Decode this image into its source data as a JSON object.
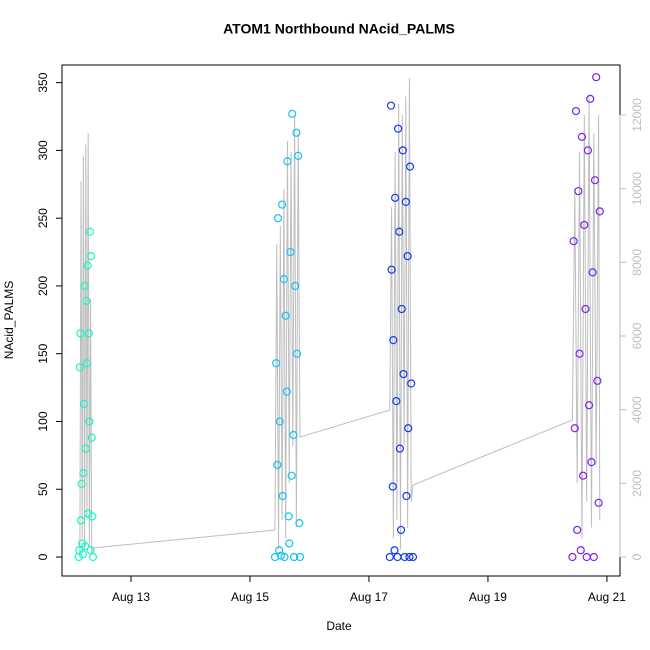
{
  "chart_data": {
    "type": "scatter",
    "title": "ATOM1 Northbound NAcid_PALMS",
    "x_label": "Date",
    "y_label": "NAcid_PALMS",
    "xlim": [
      11.84,
      21.22
    ],
    "ylim": [
      -14,
      363
    ],
    "y2lim": [
      -516,
      13358
    ],
    "xticks": [
      {
        "value": 13,
        "label": "Aug 13"
      },
      {
        "value": 15,
        "label": "Aug 15"
      },
      {
        "value": 17,
        "label": "Aug 17"
      },
      {
        "value": 19,
        "label": "Aug 19"
      },
      {
        "value": 21,
        "label": "Aug 21"
      }
    ],
    "yticks": [
      0,
      50,
      100,
      150,
      200,
      250,
      300,
      350
    ],
    "y2ticks": [
      0,
      2000,
      4000,
      6000,
      8000,
      10000,
      12000
    ],
    "series": [
      {
        "type": "line",
        "axis": "y2",
        "color": "#bebebe",
        "x": [
          12.14,
          12.16,
          12.18,
          12.2,
          12.22,
          12.24,
          12.26,
          12.28,
          12.3,
          12.32,
          12.34,
          12.36,
          15.42,
          15.45,
          15.48,
          15.51,
          15.54,
          15.57,
          15.6,
          15.63,
          15.66,
          15.69,
          15.72,
          15.75,
          15.78,
          15.81,
          15.84,
          17.35,
          17.38,
          17.41,
          17.44,
          17.47,
          17.5,
          17.53,
          17.56,
          17.59,
          17.62,
          17.65,
          17.68,
          17.71,
          17.74,
          20.42,
          20.46,
          20.5,
          20.54,
          20.58,
          20.62,
          20.66,
          20.7,
          20.74,
          20.78,
          20.82,
          20.86,
          20.88
        ],
        "values": [
          0,
          10200,
          500,
          10900,
          200,
          11200,
          1000,
          11500,
          300,
          7000,
          100,
          244,
          733,
          8500,
          200,
          9000,
          1000,
          10000,
          500,
          11300,
          2000,
          11000,
          3000,
          12000,
          800,
          11500,
          3258,
          3991,
          9500,
          500,
          11000,
          1000,
          12300,
          200,
          12000,
          3000,
          12500,
          800,
          13000,
          1500,
          1955,
          3720,
          10000,
          2000,
          11000,
          500,
          12000,
          1500,
          12500,
          800,
          11500,
          2500,
          12000,
          1000
        ]
      },
      {
        "type": "scatter",
        "color": "#1cf5c8",
        "x": [
          12.12,
          12.13,
          12.14,
          12.15,
          12.16,
          12.17,
          12.18,
          12.19,
          12.2,
          12.21,
          12.22,
          12.23,
          12.24,
          12.25,
          12.26,
          12.27,
          12.28,
          12.29,
          12.3,
          12.31,
          12.32,
          12.33,
          12.34,
          12.35,
          12.36
        ],
        "values": [
          0,
          5,
          140,
          165,
          27,
          54,
          10,
          2,
          62,
          113,
          200,
          8,
          80,
          189,
          143,
          215,
          32,
          165,
          100,
          240,
          5,
          222,
          88,
          30,
          0
        ]
      },
      {
        "type": "scatter",
        "color": "#12c4f2",
        "x": [
          15.42,
          15.44,
          15.46,
          15.47,
          15.49,
          15.5,
          15.52,
          15.54,
          15.55,
          15.57,
          15.58,
          15.6,
          15.62,
          15.63,
          15.65,
          15.66,
          15.68,
          15.7,
          15.71,
          15.73,
          15.74,
          15.76,
          15.78,
          15.79,
          15.81,
          15.83,
          15.84
        ],
        "values": [
          0,
          143,
          68,
          250,
          5,
          100,
          1,
          260,
          45,
          205,
          0,
          178,
          122,
          292,
          30,
          10,
          225,
          60,
          327,
          90,
          0,
          200,
          313,
          150,
          296,
          25,
          0
        ]
      },
      {
        "type": "scatter",
        "color": "#1638ea",
        "x": [
          17.35,
          17.37,
          17.38,
          17.4,
          17.41,
          17.43,
          17.44,
          17.46,
          17.48,
          17.49,
          17.51,
          17.52,
          17.54,
          17.55,
          17.57,
          17.58,
          17.6,
          17.62,
          17.63,
          17.65,
          17.66,
          17.68,
          17.69,
          17.71,
          17.74
        ],
        "values": [
          0,
          333,
          212,
          52,
          160,
          5,
          265,
          115,
          0,
          316,
          240,
          80,
          20,
          183,
          300,
          135,
          0,
          262,
          45,
          222,
          95,
          0,
          288,
          128,
          0
        ]
      },
      {
        "type": "scatter",
        "color": "#7b22ee",
        "x": [
          20.42,
          20.44,
          20.46,
          20.48,
          20.5,
          20.52,
          20.54,
          20.56,
          20.58,
          20.6,
          20.62,
          20.64,
          20.66,
          20.68,
          20.7,
          20.72,
          20.74,
          20.76,
          20.78,
          20.8,
          20.82,
          20.84,
          20.86,
          20.88
        ],
        "values": [
          0,
          233,
          95,
          329,
          20,
          270,
          150,
          5,
          310,
          60,
          245,
          183,
          0,
          300,
          112,
          338,
          70,
          210,
          0,
          278,
          354,
          130,
          40,
          255
        ]
      }
    ]
  }
}
